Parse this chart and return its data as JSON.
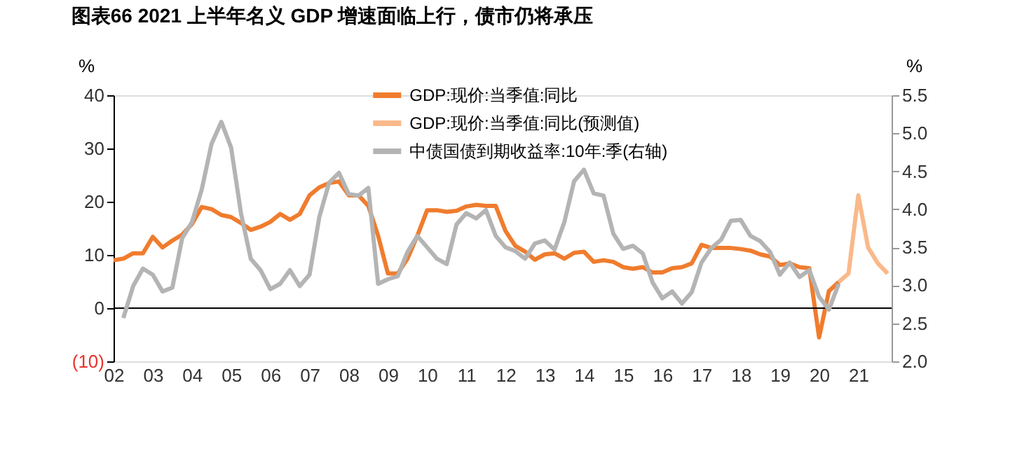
{
  "chart_data": {
    "type": "line",
    "title": "图表66    2021 上半年名义 GDP 增速面临上行，债市仍将承压",
    "ylabel": "%",
    "y2label": "%",
    "xlim": [
      2002,
      2021.85
    ],
    "xticks": [
      {
        "value": 2002,
        "label": "02"
      },
      {
        "value": 2003,
        "label": "03"
      },
      {
        "value": 2004,
        "label": "04"
      },
      {
        "value": 2005,
        "label": "05"
      },
      {
        "value": 2006,
        "label": "06"
      },
      {
        "value": 2007,
        "label": "07"
      },
      {
        "value": 2008,
        "label": "08"
      },
      {
        "value": 2009,
        "label": "09"
      },
      {
        "value": 2010,
        "label": "10"
      },
      {
        "value": 2011,
        "label": "11"
      },
      {
        "value": 2012,
        "label": "12"
      },
      {
        "value": 2013,
        "label": "13"
      },
      {
        "value": 2014,
        "label": "14"
      },
      {
        "value": 2015,
        "label": "15"
      },
      {
        "value": 2016,
        "label": "16"
      },
      {
        "value": 2017,
        "label": "17"
      },
      {
        "value": 2018,
        "label": "18"
      },
      {
        "value": 2019,
        "label": "19"
      },
      {
        "value": 2020,
        "label": "20"
      },
      {
        "value": 2021,
        "label": "21"
      }
    ],
    "ylim": [
      -10,
      40
    ],
    "yticks": [
      {
        "value": -10,
        "label": "(10)"
      },
      0,
      10,
      20,
      30,
      40
    ],
    "y2lim": [
      2.0,
      5.5
    ],
    "y2ticks": [
      {
        "value": 2.0,
        "label": "2.0"
      },
      2.5,
      {
        "value": 3.0,
        "label": "3.0"
      },
      3.5,
      {
        "value": 4.0,
        "label": "4.0"
      },
      4.5,
      {
        "value": 5.0,
        "label": "5.0"
      },
      5.5
    ],
    "ref_lines": [
      {
        "axis": "y",
        "value": 0,
        "color": "#000000"
      }
    ],
    "legend": "top",
    "grid": false,
    "series": [
      {
        "name": "GDP:现价:当季值:同比",
        "color": "#f07c2e",
        "x": [
          2002.0,
          2002.25,
          2002.5,
          2002.75,
          2003.0,
          2003.25,
          2003.5,
          2003.75,
          2004.0,
          2004.25,
          2004.5,
          2004.75,
          2005.0,
          2005.25,
          2005.5,
          2005.75,
          2006.0,
          2006.25,
          2006.5,
          2006.75,
          2007.0,
          2007.25,
          2007.5,
          2007.75,
          2008.0,
          2008.25,
          2008.5,
          2008.75,
          2009.0,
          2009.25,
          2009.5,
          2009.75,
          2010.0,
          2010.25,
          2010.5,
          2010.75,
          2011.0,
          2011.25,
          2011.5,
          2011.75,
          2012.0,
          2012.25,
          2012.5,
          2012.75,
          2013.0,
          2013.25,
          2013.5,
          2013.75,
          2014.0,
          2014.25,
          2014.5,
          2014.75,
          2015.0,
          2015.25,
          2015.5,
          2015.75,
          2016.0,
          2016.25,
          2016.5,
          2016.75,
          2017.0,
          2017.25,
          2017.5,
          2017.75,
          2018.0,
          2018.25,
          2018.5,
          2018.75,
          2019.0,
          2019.25,
          2019.5,
          2019.75,
          2020.0,
          2020.25,
          2020.5
        ],
        "values": [
          9.0,
          9.3,
          10.3,
          10.3,
          13.4,
          11.4,
          12.7,
          13.8,
          15.8,
          19.0,
          18.6,
          17.5,
          17.1,
          16.0,
          14.7,
          15.3,
          16.2,
          17.7,
          16.6,
          17.7,
          21.2,
          22.7,
          23.5,
          23.8,
          21.2,
          21.2,
          19.2,
          13.6,
          6.5,
          6.5,
          9.3,
          13.6,
          18.4,
          18.4,
          18.1,
          18.3,
          19.1,
          19.4,
          19.2,
          19.2,
          14.5,
          11.7,
          10.6,
          9.1,
          10.1,
          10.3,
          9.3,
          10.4,
          10.6,
          8.7,
          9.0,
          8.7,
          7.7,
          7.4,
          7.7,
          6.7,
          6.7,
          7.5,
          7.7,
          8.4,
          11.9,
          11.3,
          11.3,
          11.3,
          11.1,
          10.8,
          10.1,
          9.7,
          8.1,
          8.4,
          7.7,
          7.5,
          -5.5,
          3.2,
          4.9
        ]
      },
      {
        "name": "GDP:现价:当季值:同比(预测值)",
        "color": "#f9b98a",
        "x": [
          2020.5,
          2020.75,
          2021.0,
          2021.25,
          2021.5,
          2021.75
        ],
        "values": [
          4.9,
          6.5,
          21.2,
          11.4,
          8.4,
          6.5
        ]
      },
      {
        "name": "中债国债到期收益率:10年:季(右轴)",
        "color": "#b4b4b4",
        "axis": "y2",
        "x": [
          2002.25,
          2002.5,
          2002.75,
          2003.0,
          2003.25,
          2003.5,
          2003.75,
          2004.0,
          2004.25,
          2004.5,
          2004.75,
          2005.0,
          2005.25,
          2005.5,
          2005.75,
          2006.0,
          2006.25,
          2006.5,
          2006.75,
          2007.0,
          2007.25,
          2007.5,
          2007.75,
          2008.0,
          2008.25,
          2008.5,
          2008.75,
          2009.0,
          2009.25,
          2009.5,
          2009.75,
          2010.0,
          2010.25,
          2010.5,
          2010.75,
          2011.0,
          2011.25,
          2011.5,
          2011.75,
          2012.0,
          2012.25,
          2012.5,
          2012.75,
          2013.0,
          2013.25,
          2013.5,
          2013.75,
          2014.0,
          2014.25,
          2014.5,
          2014.75,
          2015.0,
          2015.25,
          2015.5,
          2015.75,
          2016.0,
          2016.25,
          2016.5,
          2016.75,
          2017.0,
          2017.25,
          2017.5,
          2017.75,
          2018.0,
          2018.25,
          2018.5,
          2018.75,
          2019.0,
          2019.25,
          2019.5,
          2019.75,
          2020.0,
          2020.25,
          2020.5
        ],
        "values": [
          2.57,
          2.99,
          3.22,
          3.14,
          2.92,
          2.97,
          3.62,
          3.83,
          4.26,
          4.86,
          5.15,
          4.81,
          3.95,
          3.35,
          3.2,
          2.95,
          3.02,
          3.2,
          2.99,
          3.14,
          3.9,
          4.35,
          4.48,
          4.2,
          4.18,
          4.28,
          3.02,
          3.08,
          3.12,
          3.44,
          3.65,
          3.5,
          3.35,
          3.28,
          3.8,
          3.95,
          3.88,
          3.99,
          3.65,
          3.5,
          3.45,
          3.35,
          3.55,
          3.59,
          3.47,
          3.83,
          4.37,
          4.52,
          4.21,
          4.18,
          3.68,
          3.48,
          3.52,
          3.42,
          3.04,
          2.83,
          2.92,
          2.76,
          2.91,
          3.3,
          3.49,
          3.6,
          3.85,
          3.86,
          3.65,
          3.58,
          3.44,
          3.14,
          3.3,
          3.11,
          3.2,
          2.85,
          2.68,
          3.02
        ]
      }
    ]
  }
}
